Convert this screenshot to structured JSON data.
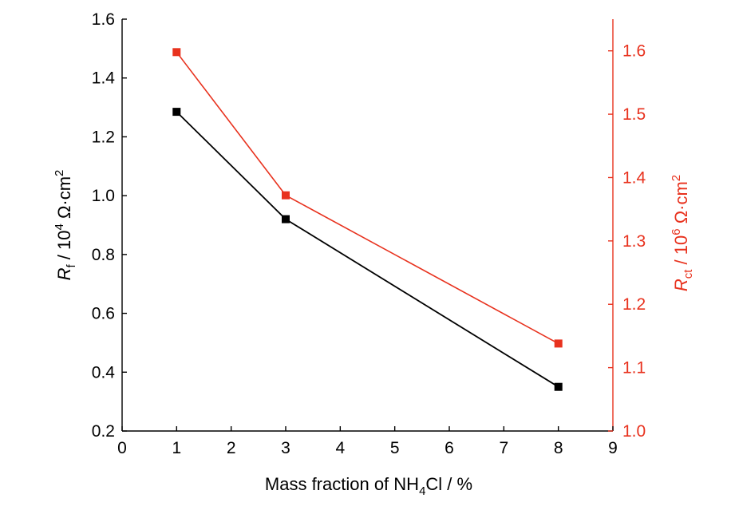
{
  "chart_data": {
    "type": "line",
    "x": [
      1,
      3,
      8
    ],
    "xlim": [
      0,
      9
    ],
    "xticks": [
      "0",
      "1",
      "2",
      "3",
      "4",
      "5",
      "6",
      "7",
      "8",
      "9"
    ],
    "xlabel": {
      "before": "Mass fraction of NH",
      "sub": "4",
      "after": "Cl / %"
    },
    "y_left": {
      "lim": [
        0.2,
        1.6
      ],
      "ticks": [
        "0.2",
        "0.4",
        "0.6",
        "0.8",
        "1.0",
        "1.2",
        "1.4",
        "1.6"
      ],
      "label": {
        "symbol": "R",
        "sub": "f",
        "mid": " / 10",
        "sup": "4",
        "unit": " Ω·cm",
        "sup2": "2"
      },
      "color": "#000000"
    },
    "y_right": {
      "lim": [
        1.0,
        1.65
      ],
      "ticks": [
        "1.0",
        "1.1",
        "1.2",
        "1.3",
        "1.4",
        "1.5",
        "1.6"
      ],
      "label": {
        "symbol": "R",
        "sub": "ct",
        "mid": " / 10",
        "sup": "6",
        "unit": " Ω·cm",
        "sup2": "2"
      },
      "color": "#e8321e"
    },
    "series": [
      {
        "axis": "left",
        "values": [
          1.285,
          0.92,
          0.35
        ],
        "color": "#000000",
        "marker": "square"
      },
      {
        "axis": "right",
        "values": [
          1.598,
          1.372,
          1.138
        ],
        "color": "#e8321e",
        "marker": "square"
      }
    ],
    "grid": false
  }
}
